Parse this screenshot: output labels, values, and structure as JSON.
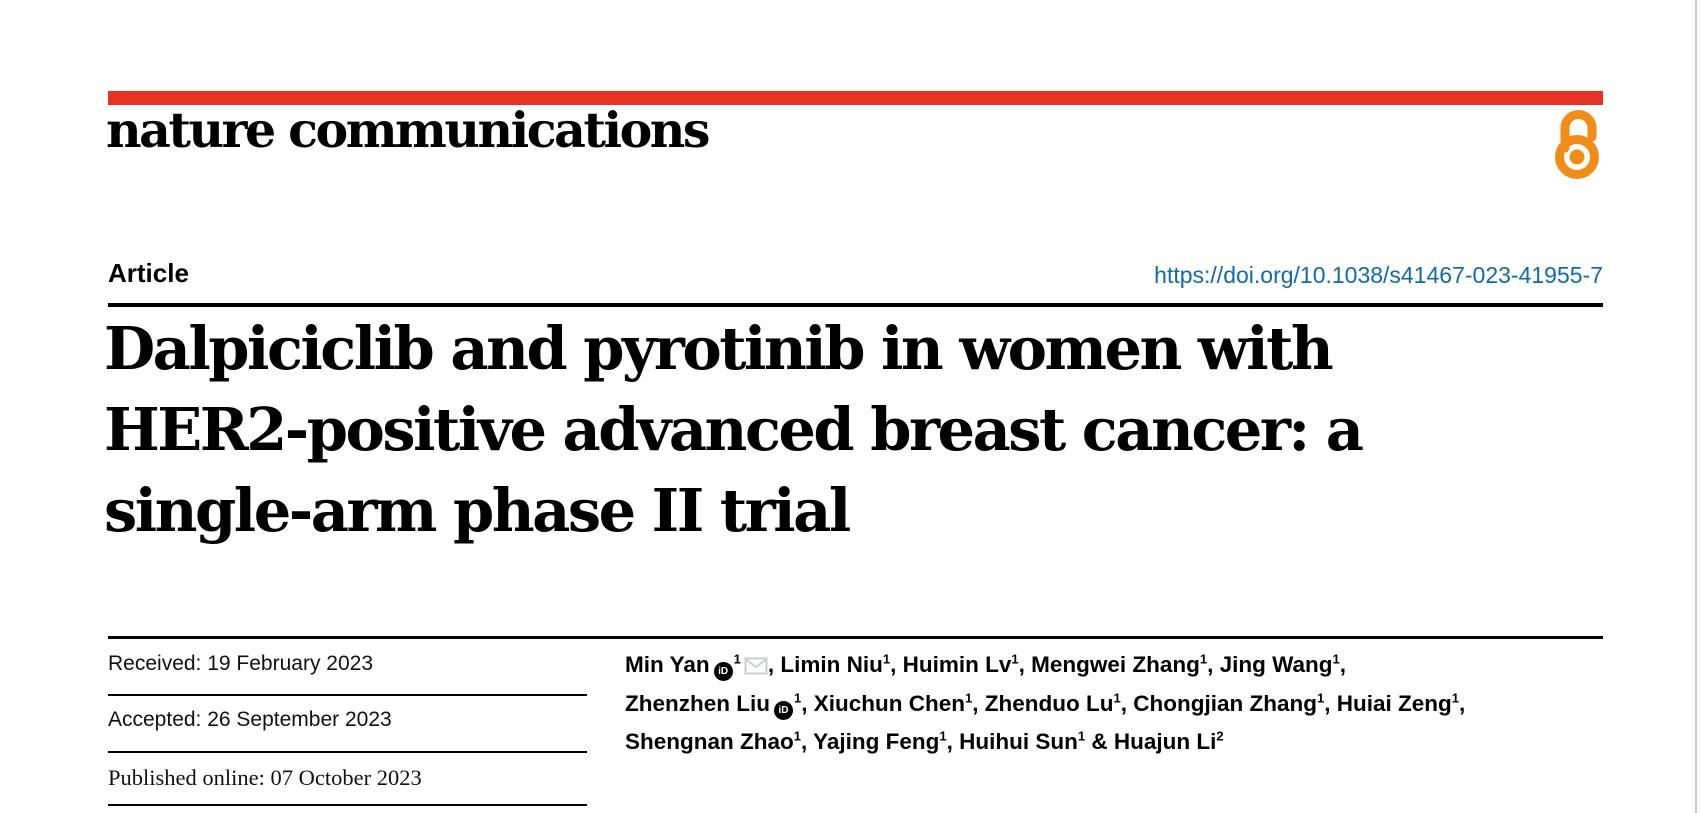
{
  "page": {
    "background": "#ffffff",
    "edge_line_color": "#cbcbcb"
  },
  "brand": {
    "journal_name": "nature communications",
    "bar_color": "#e63323",
    "open_access_icon": "open-lock",
    "open_access_color": "#f18c19"
  },
  "header": {
    "article_label": "Article",
    "doi_url": "https://doi.org/10.1038/s41467-023-41955-7",
    "doi_color": "#0f6bac"
  },
  "title": {
    "lines": [
      "Dalpiciclib and pyrotinib in women with",
      "HER2-positive advanced breast cancer: a",
      "single-arm phase II trial"
    ]
  },
  "dates": [
    {
      "label": "Received",
      "value": "19 February 2023",
      "display": "Received: 19 February 2023"
    },
    {
      "label": "Accepted",
      "value": "26 September 2023",
      "display": "Accepted: 26 September 2023"
    },
    {
      "label": "Published online",
      "value": "07 October 2023",
      "display": "Published online: 07 October 2023"
    }
  ],
  "icons": {
    "orcid_label": "iD",
    "orcid_icon": "orcid-icon",
    "email_icon": "email-envelope-icon",
    "email_color": "#c9ced3"
  },
  "authors": {
    "lines": [
      [
        {
          "name": "Min Yan",
          "sup": "1",
          "orcid": true,
          "email": true,
          "after": ", "
        },
        {
          "name": "Limin Niu",
          "sup": "1",
          "after": ", "
        },
        {
          "name": "Huimin Lv",
          "sup": "1",
          "after": ", "
        },
        {
          "name": "Mengwei Zhang",
          "sup": "1",
          "after": ", "
        },
        {
          "name": "Jing Wang",
          "sup": "1",
          "after": ","
        }
      ],
      [
        {
          "name": "Zhenzhen Liu",
          "sup": "1",
          "orcid": true,
          "after": ", "
        },
        {
          "name": "Xiuchun Chen",
          "sup": "1",
          "after": ", "
        },
        {
          "name": "Zhenduo Lu",
          "sup": "1",
          "after": ", "
        },
        {
          "name": "Chongjian Zhang",
          "sup": "1",
          "after": ", "
        },
        {
          "name": "Huiai Zeng",
          "sup": "1",
          "after": ","
        }
      ],
      [
        {
          "name": "Shengnan Zhao",
          "sup": "1",
          "after": ", "
        },
        {
          "name": "Yajing Feng",
          "sup": "1",
          "after": ", "
        },
        {
          "name": "Huihui Sun",
          "sup": "1",
          "after": " & "
        },
        {
          "name": "Huajun Li",
          "sup": "2",
          "after": ""
        }
      ]
    ]
  }
}
